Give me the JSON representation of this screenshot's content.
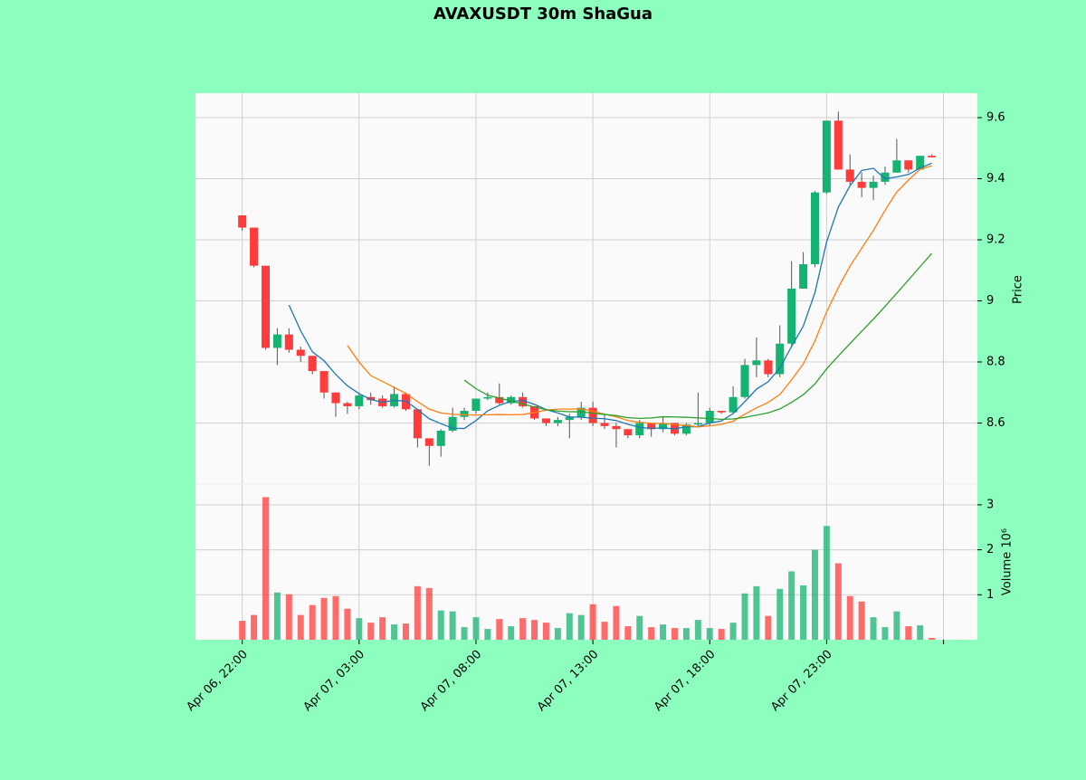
{
  "chart_data": {
    "type": "candlestick",
    "title": "AVAXUSDT 30m ShaGua",
    "ylabel": "Price",
    "volume_label": "Volume  10⁶",
    "xlim": [
      -4,
      62.9
    ],
    "xticks": [
      {
        "value": 0,
        "label": "Apr 06, 22:00"
      },
      {
        "value": 10,
        "label": "Apr 07, 03:00"
      },
      {
        "value": 20,
        "label": "Apr 07, 08:00"
      },
      {
        "value": 30,
        "label": "Apr 07, 13:00"
      },
      {
        "value": 40,
        "label": "Apr 07, 18:00"
      },
      {
        "value": 50,
        "label": "Apr 07, 23:00"
      },
      {
        "value": 60,
        "label": null
      }
    ],
    "ylim": [
      8.4,
      9.68
    ],
    "yticks": [
      8.6,
      8.8,
      9.0,
      9.2,
      9.4,
      9.6
    ],
    "volume_ylim": [
      0,
      3.46
    ],
    "volume_yticks": [
      1,
      2,
      3
    ],
    "grid": true,
    "up_color": "#15b371",
    "down_color": "#ff3b3b",
    "mav": [
      5,
      10,
      20
    ],
    "mav_colors": [
      "#1f77b4",
      "#ff7f0e",
      "#2ca02c"
    ],
    "open": [
      9.28,
      9.24,
      9.115,
      8.846,
      8.89,
      8.84,
      8.82,
      8.77,
      8.7,
      8.665,
      8.655,
      8.685,
      8.68,
      8.655,
      8.695,
      8.645,
      8.55,
      8.525,
      8.575,
      8.62,
      8.64,
      8.68,
      8.685,
      8.665,
      8.685,
      8.655,
      8.615,
      8.6,
      8.61,
      8.62,
      8.65,
      8.6,
      8.59,
      8.58,
      8.56,
      8.6,
      8.58,
      8.6,
      8.565,
      8.595,
      8.6,
      8.64,
      8.635,
      8.685,
      8.79,
      8.805,
      8.76,
      8.86,
      9.04,
      9.12,
      9.355,
      9.59,
      9.43,
      9.39,
      9.37,
      9.39,
      9.42,
      9.46,
      9.43,
      9.475
    ],
    "high": [
      9.28,
      9.24,
      9.115,
      8.91,
      8.91,
      8.85,
      8.82,
      8.77,
      8.7,
      8.67,
      8.7,
      8.7,
      8.69,
      8.72,
      8.7,
      8.645,
      8.55,
      8.58,
      8.65,
      8.65,
      8.68,
      8.7,
      8.73,
      8.69,
      8.7,
      8.655,
      8.615,
      8.62,
      8.63,
      8.67,
      8.67,
      8.63,
      8.6,
      8.58,
      8.61,
      8.6,
      8.62,
      8.6,
      8.6,
      8.7,
      8.65,
      8.64,
      8.72,
      8.81,
      8.88,
      8.81,
      8.92,
      9.13,
      9.16,
      9.36,
      9.59,
      9.62,
      9.48,
      9.42,
      9.41,
      9.44,
      9.53,
      9.46,
      9.475,
      9.48
    ],
    "low": [
      9.23,
      9.11,
      8.84,
      8.79,
      8.83,
      8.8,
      8.76,
      8.68,
      8.62,
      8.63,
      8.645,
      8.66,
      8.65,
      8.65,
      8.64,
      8.52,
      8.46,
      8.49,
      8.57,
      8.61,
      8.63,
      8.675,
      8.66,
      8.66,
      8.65,
      8.61,
      8.59,
      8.59,
      8.55,
      8.61,
      8.59,
      8.58,
      8.52,
      8.55,
      8.55,
      8.555,
      8.57,
      8.56,
      8.56,
      8.59,
      8.59,
      8.63,
      8.63,
      8.68,
      8.75,
      8.75,
      8.75,
      8.85,
      9.04,
      9.11,
      9.35,
      9.43,
      9.38,
      9.34,
      9.33,
      9.38,
      9.42,
      9.42,
      9.43,
      9.47
    ],
    "close": [
      9.24,
      9.115,
      8.846,
      8.89,
      8.84,
      8.82,
      8.77,
      8.7,
      8.665,
      8.655,
      8.69,
      8.675,
      8.655,
      8.695,
      8.645,
      8.55,
      8.525,
      8.575,
      8.62,
      8.64,
      8.68,
      8.685,
      8.665,
      8.685,
      8.655,
      8.615,
      8.6,
      8.61,
      8.62,
      8.65,
      8.6,
      8.59,
      8.58,
      8.56,
      8.6,
      8.58,
      8.6,
      8.565,
      8.595,
      8.6,
      8.64,
      8.635,
      8.685,
      8.79,
      8.805,
      8.76,
      8.86,
      9.04,
      9.12,
      9.355,
      9.59,
      9.43,
      9.39,
      9.37,
      9.39,
      9.42,
      9.46,
      9.43,
      9.475,
      9.47
    ],
    "volume": [
      0.42,
      0.55,
      3.17,
      1.05,
      1.01,
      0.55,
      0.77,
      0.93,
      0.97,
      0.69,
      0.48,
      0.38,
      0.5,
      0.34,
      0.36,
      1.19,
      1.15,
      0.65,
      0.63,
      0.28,
      0.5,
      0.24,
      0.46,
      0.3,
      0.48,
      0.44,
      0.38,
      0.26,
      0.59,
      0.55,
      0.79,
      0.4,
      0.75,
      0.3,
      0.53,
      0.28,
      0.34,
      0.26,
      0.26,
      0.44,
      0.26,
      0.24,
      0.38,
      1.03,
      1.19,
      0.53,
      1.13,
      1.52,
      1.21,
      2.0,
      2.53,
      1.7,
      0.97,
      0.85,
      0.5,
      0.28,
      0.63,
      0.3,
      0.32,
      0.04
    ]
  }
}
